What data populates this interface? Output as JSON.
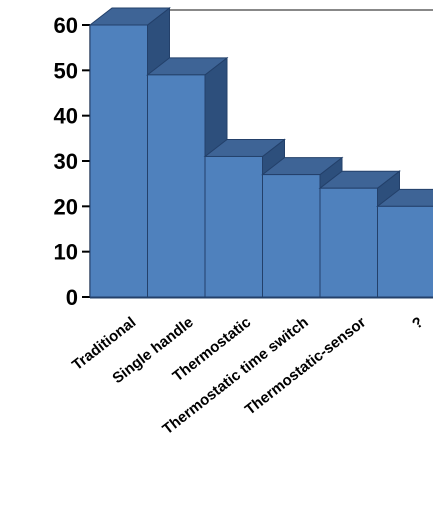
{
  "chart_data": {
    "type": "bar",
    "style": "3d",
    "categories": [
      "Traditional",
      "Single handle",
      "Thermostatic",
      "Thermostatic time switch",
      "Thermostatic-sensor",
      "?"
    ],
    "values": [
      60,
      49,
      31,
      27,
      24,
      20
    ],
    "ylim": [
      0,
      60
    ],
    "yticks": [
      0,
      10,
      20,
      30,
      40,
      50,
      60
    ],
    "grid": false,
    "legend": "none",
    "colors": {
      "front": "#4F81BD",
      "side": "#2D4F7C",
      "top": "#3E6496",
      "outline": "#23406A"
    }
  }
}
